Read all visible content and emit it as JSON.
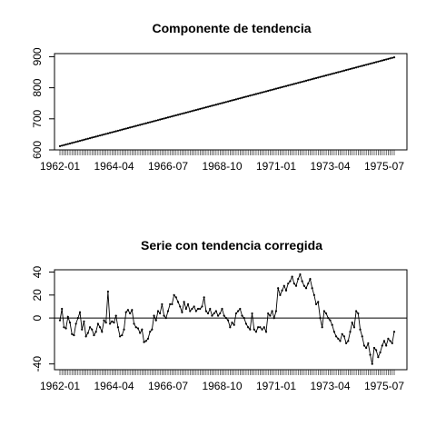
{
  "chart_data": [
    {
      "type": "line",
      "title": "Componente de tendencia",
      "x_start": "1962-01",
      "x_end": "1975-12",
      "frequency": "monthly",
      "x_tick_labels": [
        "1962-01",
        "1964-04",
        "1966-07",
        "1968-10",
        "1971-01",
        "1973-04",
        "1975-07"
      ],
      "y_ticks": [
        600,
        700,
        800,
        900
      ],
      "ylim": [
        600,
        910
      ],
      "trend_start": 612,
      "trend_end": 898,
      "points": true,
      "line_color": "#000000"
    },
    {
      "type": "line",
      "title": "Serie con tendencia corregida",
      "x_start": "1962-01",
      "x_end": "1975-12",
      "frequency": "monthly",
      "x_tick_labels": [
        "1962-01",
        "1964-04",
        "1966-07",
        "1968-10",
        "1971-01",
        "1973-04",
        "1975-07"
      ],
      "y_ticks": [
        -40,
        0,
        20,
        40
      ],
      "ylim": [
        -45,
        42
      ],
      "reference_line_y": 0,
      "points": true,
      "line_color": "#000000",
      "values": [
        -2,
        8,
        -8,
        -9,
        1,
        -4,
        -14,
        -15,
        -5,
        0,
        5,
        -10,
        -3,
        -16,
        -13,
        -8,
        -10,
        -15,
        -12,
        -5,
        -8,
        -12,
        -2,
        -4,
        23,
        -5,
        -3,
        -4,
        2,
        -8,
        -16,
        -15,
        -10,
        5,
        7,
        4,
        7,
        -5,
        -8,
        -9,
        -13,
        -10,
        -21,
        -20,
        -18,
        -12,
        -10,
        2,
        -2,
        6,
        4,
        12,
        2,
        0,
        6,
        12,
        12,
        20,
        18,
        14,
        10,
        5,
        14,
        8,
        12,
        6,
        8,
        10,
        6,
        8,
        8,
        10,
        18,
        6,
        4,
        8,
        2,
        4,
        6,
        2,
        4,
        8,
        2,
        0,
        -2,
        -8,
        -4,
        -6,
        4,
        6,
        8,
        2,
        0,
        -5,
        -8,
        -10,
        4,
        -10,
        -12,
        -8,
        -8,
        -10,
        -8,
        -12,
        4,
        2,
        6,
        0,
        6,
        26,
        20,
        24,
        28,
        24,
        30,
        32,
        36,
        30,
        28,
        34,
        38,
        32,
        28,
        26,
        30,
        34,
        26,
        20,
        12,
        14,
        0,
        -8,
        6,
        4,
        0,
        -2,
        -6,
        -12,
        -16,
        -18,
        -20,
        -14,
        -16,
        -22,
        -20,
        -12,
        -4,
        -8,
        6,
        4,
        -10,
        -16,
        -24,
        -26,
        -22,
        -32,
        -40,
        -26,
        -28,
        -34,
        -30,
        -24,
        -20,
        -24,
        -18,
        -20,
        -22,
        -12
      ]
    }
  ]
}
